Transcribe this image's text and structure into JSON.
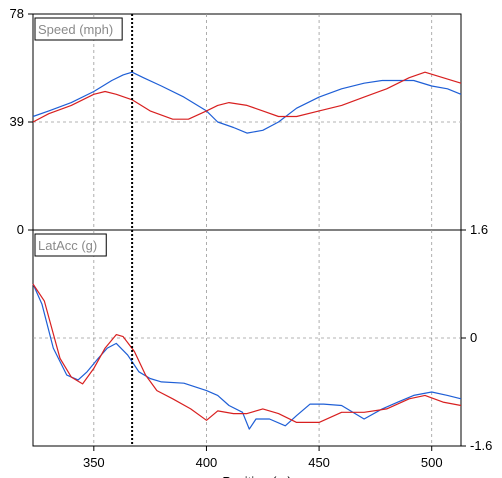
{
  "chart_data": [
    {
      "type": "line",
      "title": "Speed (mph)",
      "ylim": [
        0,
        78
      ],
      "yticks": [
        0,
        39,
        78
      ],
      "ytick_side": "left",
      "xlim": [
        323,
        513
      ],
      "grid": true,
      "series": [
        {
          "color": "#1f5fd6",
          "x": [
            323,
            330,
            340,
            350,
            358,
            363,
            367,
            372,
            380,
            390,
            400,
            405,
            412,
            418,
            425,
            432,
            440,
            450,
            460,
            470,
            478,
            485,
            492,
            500,
            507,
            513
          ],
          "y": [
            41,
            43,
            46,
            50,
            54,
            56,
            57,
            55,
            52,
            48,
            43,
            39,
            37,
            35,
            36,
            39,
            44,
            48,
            51,
            53,
            54,
            54,
            54,
            52,
            51,
            49
          ]
        },
        {
          "color": "#d82020",
          "x": [
            323,
            330,
            340,
            350,
            355,
            360,
            367,
            375,
            385,
            392,
            400,
            405,
            410,
            418,
            425,
            432,
            440,
            450,
            460,
            470,
            480,
            490,
            497,
            505,
            513
          ],
          "y": [
            39,
            42,
            45,
            49,
            50,
            49,
            47,
            43,
            40,
            40,
            43,
            45,
            46,
            45,
            43,
            41,
            41,
            43,
            45,
            48,
            51,
            55,
            57,
            55,
            53
          ]
        }
      ]
    },
    {
      "type": "line",
      "title": "LatAcc (g)",
      "ylim": [
        -1.6,
        1.6
      ],
      "yticks": [
        -1.6,
        0,
        1.6
      ],
      "ytick_side": "right",
      "xlim": [
        323,
        513
      ],
      "grid": true,
      "series": [
        {
          "color": "#1f5fd6",
          "x": [
            323,
            327,
            332,
            338,
            343,
            347,
            352,
            356,
            360,
            365,
            370,
            375,
            380,
            390,
            400,
            405,
            410,
            416,
            419,
            422,
            428,
            435,
            440,
            446,
            452,
            460,
            470,
            478,
            485,
            492,
            500,
            507,
            513
          ],
          "y": [
            0.8,
            0.5,
            -0.15,
            -0.55,
            -0.62,
            -0.5,
            -0.3,
            -0.15,
            -0.08,
            -0.25,
            -0.5,
            -0.6,
            -0.65,
            -0.67,
            -0.78,
            -0.85,
            -1.0,
            -1.1,
            -1.35,
            -1.2,
            -1.2,
            -1.3,
            -1.15,
            -0.98,
            -0.98,
            -1.0,
            -1.2,
            -1.05,
            -0.95,
            -0.85,
            -0.8,
            -0.85,
            -0.9
          ]
        },
        {
          "color": "#d82020",
          "x": [
            323,
            328,
            335,
            340,
            345,
            350,
            355,
            360,
            363,
            368,
            373,
            378,
            385,
            393,
            400,
            405,
            412,
            418,
            425,
            432,
            440,
            450,
            460,
            470,
            480,
            490,
            497,
            505,
            513
          ],
          "y": [
            0.8,
            0.55,
            -0.3,
            -0.58,
            -0.68,
            -0.45,
            -0.15,
            0.05,
            0.02,
            -0.2,
            -0.55,
            -0.78,
            -0.9,
            -1.05,
            -1.22,
            -1.08,
            -1.12,
            -1.12,
            -1.05,
            -1.12,
            -1.25,
            -1.25,
            -1.1,
            -1.1,
            -1.05,
            -0.9,
            -0.85,
            -0.95,
            -1.0
          ]
        }
      ]
    }
  ],
  "x_axis": {
    "ticks": [
      350,
      400,
      450,
      500
    ],
    "label": "Position (m)"
  },
  "cursor": {
    "x": 367
  }
}
